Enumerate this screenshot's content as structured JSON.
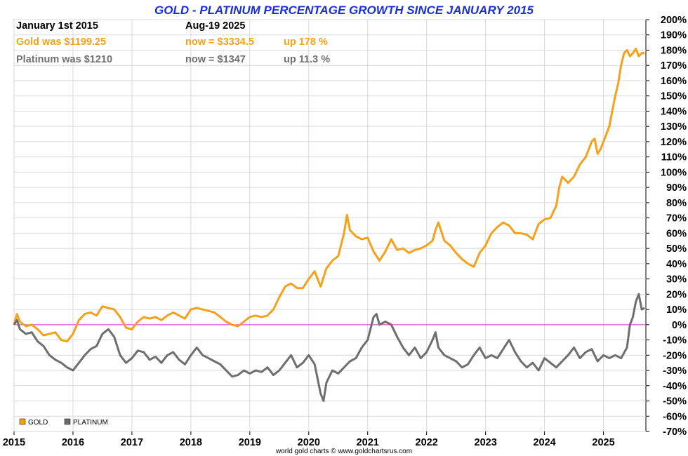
{
  "chart_data": {
    "type": "line",
    "title": "GOLD - PLATINUM PERCENTAGE GROWTH SINCE JANUARY 2015",
    "xlabel": "",
    "ylabel": "",
    "xlim": [
      2015.0,
      2025.72
    ],
    "ylim": [
      -70,
      200
    ],
    "grid": true,
    "legend_position": "bottom-left",
    "x_ticks": [
      "2015",
      "2016",
      "2017",
      "2018",
      "2019",
      "2020",
      "2021",
      "2022",
      "2023",
      "2024",
      "2025"
    ],
    "y_ticks": [
      -70,
      -60,
      -50,
      -40,
      -30,
      -20,
      -10,
      0,
      10,
      20,
      30,
      40,
      50,
      60,
      70,
      80,
      90,
      100,
      110,
      120,
      130,
      140,
      150,
      160,
      170,
      180,
      190,
      200
    ],
    "annotations": {
      "date_start": "January 1st 2015",
      "date_end": "Aug-19  2025",
      "gold_was": "Gold was $1199.25",
      "gold_now": "now = $3334.5",
      "gold_up": "up 178 %",
      "plat_was": "Platinum was $1210",
      "plat_now": "now = $1347",
      "plat_up": "up 11.3 %"
    },
    "credit": "world gold charts © www.goldchartsrus.com",
    "series": [
      {
        "name": "GOLD",
        "color": "#f5a11a",
        "points": [
          [
            2015.0,
            0
          ],
          [
            2015.05,
            7
          ],
          [
            2015.1,
            2
          ],
          [
            2015.2,
            -1
          ],
          [
            2015.3,
            0
          ],
          [
            2015.4,
            -3
          ],
          [
            2015.5,
            -7
          ],
          [
            2015.6,
            -6
          ],
          [
            2015.7,
            -5
          ],
          [
            2015.8,
            -10
          ],
          [
            2015.9,
            -11
          ],
          [
            2016.0,
            -6
          ],
          [
            2016.1,
            3
          ],
          [
            2016.2,
            7
          ],
          [
            2016.3,
            8
          ],
          [
            2016.4,
            6
          ],
          [
            2016.5,
            12
          ],
          [
            2016.6,
            11
          ],
          [
            2016.7,
            10
          ],
          [
            2016.8,
            5
          ],
          [
            2016.9,
            -2
          ],
          [
            2017.0,
            -3
          ],
          [
            2017.1,
            2
          ],
          [
            2017.2,
            5
          ],
          [
            2017.3,
            4
          ],
          [
            2017.4,
            5
          ],
          [
            2017.5,
            3
          ],
          [
            2017.6,
            6
          ],
          [
            2017.7,
            8
          ],
          [
            2017.8,
            6
          ],
          [
            2017.9,
            4
          ],
          [
            2018.0,
            10
          ],
          [
            2018.1,
            11
          ],
          [
            2018.2,
            10
          ],
          [
            2018.3,
            9
          ],
          [
            2018.4,
            8
          ],
          [
            2018.5,
            5
          ],
          [
            2018.6,
            2
          ],
          [
            2018.7,
            0
          ],
          [
            2018.8,
            -1
          ],
          [
            2018.9,
            2
          ],
          [
            2019.0,
            5
          ],
          [
            2019.1,
            6
          ],
          [
            2019.2,
            5
          ],
          [
            2019.3,
            6
          ],
          [
            2019.4,
            10
          ],
          [
            2019.5,
            18
          ],
          [
            2019.6,
            25
          ],
          [
            2019.7,
            27
          ],
          [
            2019.8,
            24
          ],
          [
            2019.9,
            24
          ],
          [
            2020.0,
            30
          ],
          [
            2020.1,
            35
          ],
          [
            2020.2,
            25
          ],
          [
            2020.3,
            37
          ],
          [
            2020.4,
            42
          ],
          [
            2020.5,
            45
          ],
          [
            2020.6,
            60
          ],
          [
            2020.65,
            72
          ],
          [
            2020.7,
            62
          ],
          [
            2020.8,
            58
          ],
          [
            2020.9,
            56
          ],
          [
            2021.0,
            57
          ],
          [
            2021.1,
            48
          ],
          [
            2021.2,
            42
          ],
          [
            2021.3,
            48
          ],
          [
            2021.4,
            56
          ],
          [
            2021.5,
            49
          ],
          [
            2021.6,
            50
          ],
          [
            2021.7,
            47
          ],
          [
            2021.8,
            49
          ],
          [
            2021.9,
            50
          ],
          [
            2022.0,
            52
          ],
          [
            2022.1,
            55
          ],
          [
            2022.15,
            62
          ],
          [
            2022.2,
            67
          ],
          [
            2022.3,
            55
          ],
          [
            2022.4,
            52
          ],
          [
            2022.5,
            47
          ],
          [
            2022.6,
            43
          ],
          [
            2022.7,
            40
          ],
          [
            2022.8,
            38
          ],
          [
            2022.9,
            47
          ],
          [
            2023.0,
            52
          ],
          [
            2023.1,
            60
          ],
          [
            2023.2,
            64
          ],
          [
            2023.3,
            67
          ],
          [
            2023.4,
            65
          ],
          [
            2023.5,
            60
          ],
          [
            2023.6,
            60
          ],
          [
            2023.7,
            59
          ],
          [
            2023.8,
            56
          ],
          [
            2023.9,
            66
          ],
          [
            2024.0,
            69
          ],
          [
            2024.1,
            70
          ],
          [
            2024.2,
            78
          ],
          [
            2024.25,
            90
          ],
          [
            2024.3,
            97
          ],
          [
            2024.4,
            93
          ],
          [
            2024.5,
            97
          ],
          [
            2024.6,
            105
          ],
          [
            2024.7,
            110
          ],
          [
            2024.8,
            120
          ],
          [
            2024.85,
            122
          ],
          [
            2024.9,
            112
          ],
          [
            2024.95,
            115
          ],
          [
            2025.0,
            120
          ],
          [
            2025.1,
            130
          ],
          [
            2025.15,
            140
          ],
          [
            2025.2,
            150
          ],
          [
            2025.25,
            158
          ],
          [
            2025.3,
            170
          ],
          [
            2025.35,
            178
          ],
          [
            2025.4,
            180
          ],
          [
            2025.45,
            176
          ],
          [
            2025.5,
            178
          ],
          [
            2025.55,
            181
          ],
          [
            2025.6,
            176
          ],
          [
            2025.65,
            178
          ],
          [
            2025.7,
            178
          ]
        ]
      },
      {
        "name": "PLATINUM",
        "color": "#6e6e6e",
        "points": [
          [
            2015.0,
            0
          ],
          [
            2015.05,
            3
          ],
          [
            2015.1,
            -3
          ],
          [
            2015.2,
            -6
          ],
          [
            2015.3,
            -5
          ],
          [
            2015.4,
            -11
          ],
          [
            2015.5,
            -14
          ],
          [
            2015.6,
            -20
          ],
          [
            2015.7,
            -23
          ],
          [
            2015.8,
            -25
          ],
          [
            2015.9,
            -28
          ],
          [
            2016.0,
            -30
          ],
          [
            2016.1,
            -25
          ],
          [
            2016.2,
            -20
          ],
          [
            2016.3,
            -16
          ],
          [
            2016.4,
            -14
          ],
          [
            2016.5,
            -6
          ],
          [
            2016.6,
            -3
          ],
          [
            2016.7,
            -8
          ],
          [
            2016.8,
            -20
          ],
          [
            2016.9,
            -25
          ],
          [
            2017.0,
            -22
          ],
          [
            2017.1,
            -17
          ],
          [
            2017.2,
            -18
          ],
          [
            2017.3,
            -23
          ],
          [
            2017.4,
            -21
          ],
          [
            2017.5,
            -25
          ],
          [
            2017.6,
            -20
          ],
          [
            2017.7,
            -18
          ],
          [
            2017.8,
            -23
          ],
          [
            2017.9,
            -26
          ],
          [
            2018.0,
            -20
          ],
          [
            2018.1,
            -15
          ],
          [
            2018.2,
            -20
          ],
          [
            2018.3,
            -22
          ],
          [
            2018.4,
            -24
          ],
          [
            2018.5,
            -26
          ],
          [
            2018.6,
            -30
          ],
          [
            2018.7,
            -34
          ],
          [
            2018.8,
            -33
          ],
          [
            2018.9,
            -30
          ],
          [
            2019.0,
            -32
          ],
          [
            2019.1,
            -30
          ],
          [
            2019.2,
            -31
          ],
          [
            2019.3,
            -28
          ],
          [
            2019.4,
            -33
          ],
          [
            2019.5,
            -30
          ],
          [
            2019.6,
            -25
          ],
          [
            2019.7,
            -20
          ],
          [
            2019.8,
            -28
          ],
          [
            2019.9,
            -25
          ],
          [
            2020.0,
            -20
          ],
          [
            2020.1,
            -26
          ],
          [
            2020.2,
            -45
          ],
          [
            2020.25,
            -50
          ],
          [
            2020.3,
            -38
          ],
          [
            2020.4,
            -30
          ],
          [
            2020.5,
            -32
          ],
          [
            2020.6,
            -28
          ],
          [
            2020.7,
            -24
          ],
          [
            2020.8,
            -22
          ],
          [
            2020.9,
            -15
          ],
          [
            2021.0,
            -10
          ],
          [
            2021.1,
            5
          ],
          [
            2021.15,
            7
          ],
          [
            2021.2,
            0
          ],
          [
            2021.3,
            2
          ],
          [
            2021.4,
            0
          ],
          [
            2021.5,
            -8
          ],
          [
            2021.6,
            -15
          ],
          [
            2021.7,
            -20
          ],
          [
            2021.8,
            -15
          ],
          [
            2021.9,
            -22
          ],
          [
            2022.0,
            -18
          ],
          [
            2022.1,
            -10
          ],
          [
            2022.15,
            -5
          ],
          [
            2022.2,
            -15
          ],
          [
            2022.3,
            -20
          ],
          [
            2022.4,
            -22
          ],
          [
            2022.5,
            -24
          ],
          [
            2022.6,
            -28
          ],
          [
            2022.7,
            -26
          ],
          [
            2022.8,
            -20
          ],
          [
            2022.9,
            -15
          ],
          [
            2023.0,
            -22
          ],
          [
            2023.1,
            -20
          ],
          [
            2023.2,
            -22
          ],
          [
            2023.3,
            -16
          ],
          [
            2023.4,
            -10
          ],
          [
            2023.5,
            -18
          ],
          [
            2023.6,
            -24
          ],
          [
            2023.7,
            -28
          ],
          [
            2023.8,
            -25
          ],
          [
            2023.9,
            -30
          ],
          [
            2024.0,
            -22
          ],
          [
            2024.1,
            -25
          ],
          [
            2024.2,
            -28
          ],
          [
            2024.3,
            -24
          ],
          [
            2024.4,
            -20
          ],
          [
            2024.5,
            -15
          ],
          [
            2024.6,
            -22
          ],
          [
            2024.7,
            -18
          ],
          [
            2024.8,
            -16
          ],
          [
            2024.9,
            -24
          ],
          [
            2025.0,
            -20
          ],
          [
            2025.1,
            -22
          ],
          [
            2025.2,
            -20
          ],
          [
            2025.3,
            -22
          ],
          [
            2025.4,
            -15
          ],
          [
            2025.45,
            0
          ],
          [
            2025.5,
            5
          ],
          [
            2025.55,
            15
          ],
          [
            2025.6,
            20
          ],
          [
            2025.65,
            10
          ],
          [
            2025.7,
            11
          ]
        ]
      }
    ]
  }
}
